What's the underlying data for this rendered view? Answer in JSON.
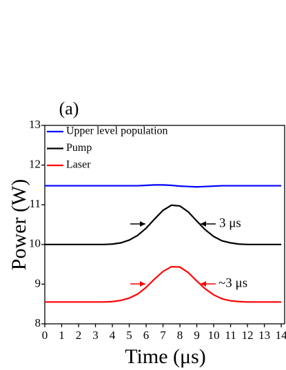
{
  "chart_data": {
    "type": "line",
    "panel_label": "(a)",
    "x_label": "Time (μs)",
    "y_label": "Power (W)",
    "x": [
      0,
      0.5,
      1,
      1.5,
      2,
      2.5,
      3,
      3.5,
      4,
      4.5,
      5,
      5.5,
      6,
      6.5,
      7,
      7.5,
      8,
      8.5,
      9,
      9.5,
      10,
      10.5,
      11,
      11.5,
      12,
      12.5,
      13,
      13.5,
      14
    ],
    "series": [
      {
        "name": "Upper level population",
        "color": "#0000ff",
        "values": [
          11.48,
          11.48,
          11.48,
          11.48,
          11.48,
          11.48,
          11.48,
          11.48,
          11.48,
          11.48,
          11.48,
          11.48,
          11.49,
          11.5,
          11.5,
          11.49,
          11.47,
          11.46,
          11.45,
          11.46,
          11.47,
          11.48,
          11.48,
          11.48,
          11.48,
          11.48,
          11.48,
          11.48,
          11.48
        ]
      },
      {
        "name": "Pump",
        "color": "#000000",
        "values": [
          10,
          10,
          10,
          10,
          10,
          10,
          10,
          10,
          10.01,
          10.04,
          10.11,
          10.23,
          10.41,
          10.64,
          10.86,
          10.99,
          10.97,
          10.82,
          10.59,
          10.37,
          10.2,
          10.09,
          10.04,
          10.01,
          10,
          10,
          10,
          10,
          10
        ]
      },
      {
        "name": "Laser",
        "color": "#ff0000",
        "values": [
          8.55,
          8.55,
          8.55,
          8.55,
          8.55,
          8.55,
          8.55,
          8.55,
          8.56,
          8.59,
          8.65,
          8.75,
          8.92,
          9.13,
          9.32,
          9.44,
          9.43,
          9.29,
          9.08,
          8.88,
          8.73,
          8.63,
          8.58,
          8.56,
          8.55,
          8.55,
          8.55,
          8.55,
          8.55
        ]
      }
    ],
    "annotations": [
      "3 μs",
      "~3 μs"
    ],
    "xlim": [
      0,
      14.2
    ],
    "xticks": [
      0,
      1,
      2,
      3,
      4,
      5,
      6,
      7,
      8,
      9,
      10,
      11,
      12,
      13,
      14
    ],
    "ylim": [
      8,
      13
    ],
    "yticks": [
      8,
      9,
      10,
      11,
      12,
      13
    ],
    "legend": "upper-left"
  }
}
